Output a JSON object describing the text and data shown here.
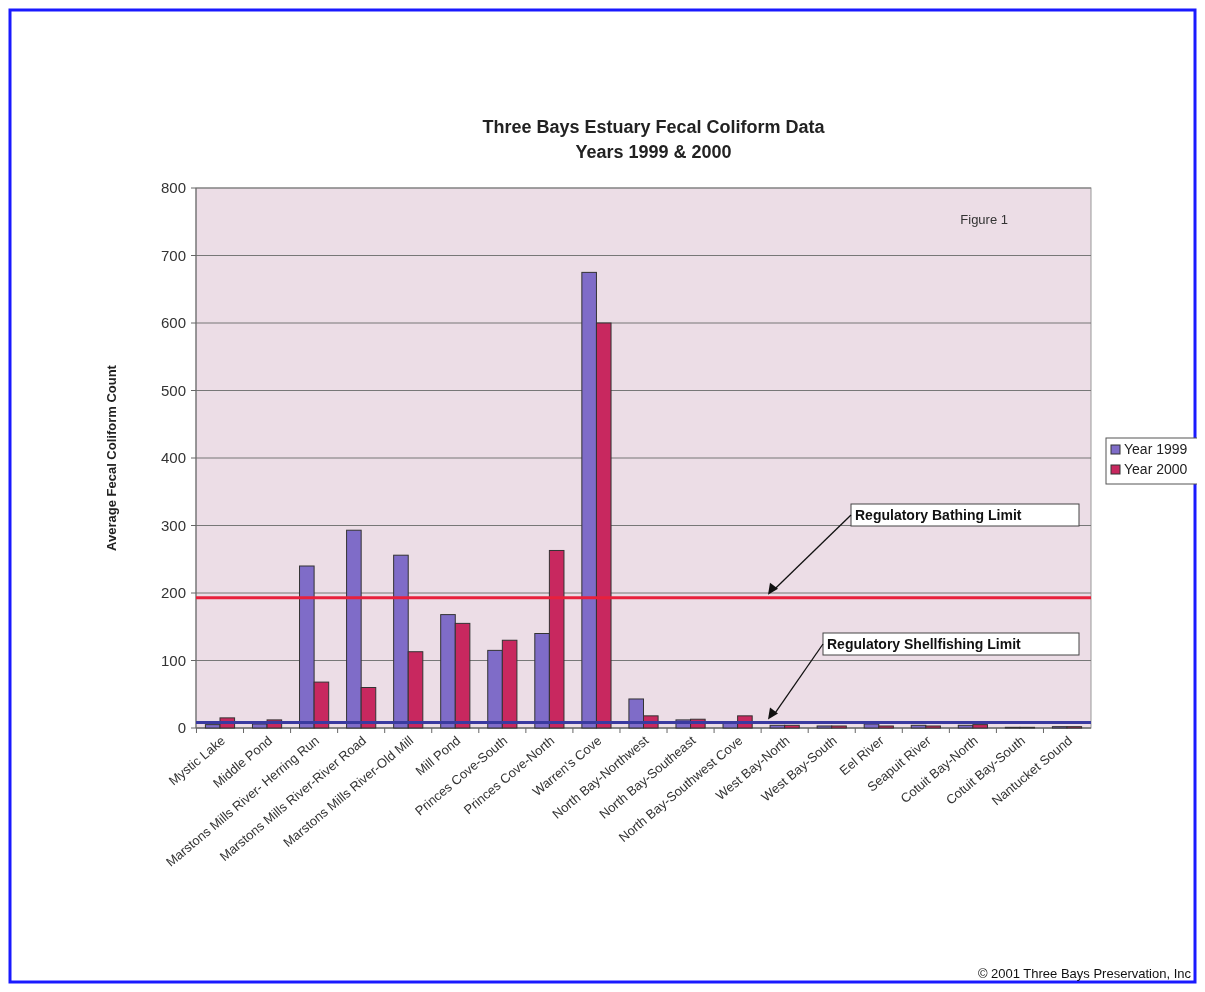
{
  "chart_data": {
    "type": "bar",
    "title": "Three Bays Estuary Fecal Coliform Data",
    "subtitle": "Years 1999 & 2000",
    "ylabel": "Average Fecal Coliform Count",
    "categories": [
      "Mystic Lake",
      "Middle Pond",
      "Marstons Mills River- Herring Run",
      "Marstons Mills River-River Road",
      "Marstons Mills River-Old Mill",
      "Mill Pond",
      "Princes Cove-South",
      "Princes Cove-North",
      "Warren's Cove",
      "North Bay-Northwest",
      "North Bay-Southeast",
      "North Bay-Southwest Cove",
      "West Bay-North",
      "West Bay-South",
      "Eel River",
      "Seapuit River",
      "Cotuit Bay-North",
      "Cotuit Bay-South",
      "Nantucket Sound"
    ],
    "series": [
      {
        "name": "Year 1999",
        "color": "#7f6cc8",
        "values": [
          5,
          6,
          240,
          293,
          256,
          168,
          115,
          140,
          675,
          43,
          12,
          8,
          4,
          3,
          6,
          4,
          4,
          1,
          2
        ]
      },
      {
        "name": "Year 2000",
        "color": "#c8285f",
        "values": [
          15,
          12,
          68,
          60,
          113,
          155,
          130,
          263,
          600,
          18,
          13,
          18,
          4,
          3,
          3,
          3,
          5,
          1,
          2
        ]
      }
    ],
    "ylim": [
      0,
      800
    ],
    "yticks": [
      0,
      100,
      200,
      300,
      400,
      500,
      600,
      700,
      800
    ],
    "grid": "y",
    "legend": "right",
    "ref_lines": [
      {
        "axis": "y",
        "value": 193,
        "label": "Regulatory Bathing Limit",
        "color": "#e8203c"
      },
      {
        "axis": "y",
        "value": 8,
        "label": "Regulatory Shellfishing Limit",
        "color": "#3a3aa0"
      }
    ],
    "annotations": [
      "Figure 1",
      "© 2001 Three Bays Preservation, Inc"
    ]
  }
}
